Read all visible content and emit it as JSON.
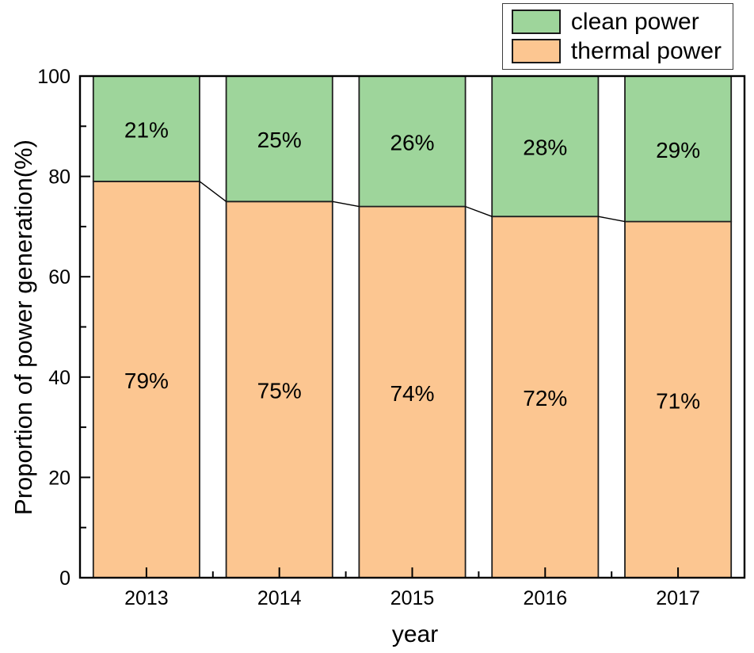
{
  "chart_data": {
    "type": "bar",
    "stacked": true,
    "title": "",
    "xlabel": "year",
    "ylabel": "Proportion of power generation(%)",
    "categories": [
      "2013",
      "2014",
      "2015",
      "2016",
      "2017"
    ],
    "series": [
      {
        "name": "thermal power",
        "color": "#fcc691",
        "values": [
          79,
          75,
          74,
          72,
          71
        ]
      },
      {
        "name": "clean power",
        "color": "#9ed59b",
        "values": [
          21,
          25,
          26,
          28,
          29
        ]
      }
    ],
    "data_label_format": "{value}%",
    "ylim": [
      0,
      100
    ],
    "yticks_major": [
      0,
      20,
      40,
      60,
      80,
      100
    ],
    "yticks_minor": [
      10,
      30,
      50,
      70,
      90
    ],
    "grid": false,
    "connector_lines": true,
    "frame": true,
    "bar_border_color": "#1f1f1f",
    "text_color": "#000000",
    "legend": {
      "position": "top-right",
      "entries": [
        {
          "label": "clean power",
          "color": "#9ed59b"
        },
        {
          "label": "thermal power",
          "color": "#fcc691"
        }
      ]
    }
  }
}
